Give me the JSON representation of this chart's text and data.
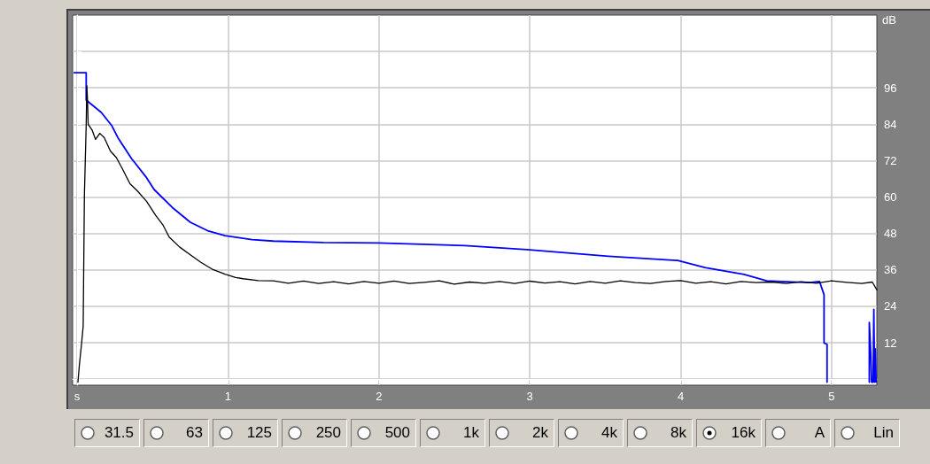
{
  "chart_data": {
    "type": "line",
    "ylabel": "dB",
    "xlim": [
      -0.03,
      5.3
    ],
    "xticks": [
      {
        "value": 0,
        "label": "s"
      },
      1,
      2,
      3,
      4,
      5
    ],
    "ylim": [
      -2,
      120
    ],
    "yticks": [
      {
        "value": 0,
        "label": null
      },
      12,
      24,
      36,
      48,
      60,
      72,
      84,
      96,
      {
        "value": 108,
        "label": null
      }
    ],
    "grid": true,
    "marker": "none",
    "line_style": "solid",
    "series": [
      {
        "color": "#0000ff",
        "x": [
          -0.02,
          0.06,
          0.06,
          0.16,
          0.23,
          0.27,
          0.36,
          0.46,
          0.51,
          0.63,
          0.75,
          0.87,
          0.98,
          1.16,
          1.3,
          1.63,
          2.0,
          2.57,
          2.98,
          3.52,
          3.98,
          4.16,
          4.42,
          4.57,
          4.7,
          4.85,
          4.92,
          4.95,
          4.95,
          4.97,
          4.97,
          5.1,
          5.25,
          5.25,
          5.26,
          5.265,
          5.275,
          5.28,
          5.285,
          5.29,
          5.295
        ],
        "values": [
          101,
          101,
          92,
          87.9,
          83.5,
          79.6,
          72.7,
          66.4,
          62.5,
          56.6,
          51.7,
          48.8,
          47.3,
          46,
          45.5,
          45,
          44.9,
          44,
          42.7,
          40.5,
          39.1,
          36.8,
          34.5,
          32.4,
          32.1,
          31.8,
          32.2,
          27.8,
          11.9,
          11.5,
          -1,
          null,
          -1,
          18.7,
          8,
          -1,
          -1,
          23,
          -1,
          10,
          -1
        ]
      },
      {
        "color": "#000000",
        "x": [
          0.005,
          0.015,
          0.029,
          0.04,
          0.048,
          0.06,
          0.064,
          0.068,
          0.073,
          0.1,
          0.122,
          0.15,
          0.18,
          0.22,
          0.26,
          0.3,
          0.35,
          0.4,
          0.46,
          0.52,
          0.57,
          0.61,
          0.68,
          0.75,
          0.82,
          0.9,
          0.98,
          1.05,
          1.1,
          1.2,
          1.3,
          1.4,
          1.5,
          1.6,
          1.7,
          1.8,
          1.9,
          2.0,
          2.1,
          2.2,
          2.3,
          2.4,
          2.5,
          2.6,
          2.7,
          2.8,
          2.9,
          3.0,
          3.1,
          3.2,
          3.3,
          3.4,
          3.5,
          3.6,
          3.7,
          3.8,
          3.9,
          4.0,
          4.1,
          4.2,
          4.3,
          4.4,
          4.5,
          4.6,
          4.7,
          4.8,
          4.9,
          5.0,
          5.1,
          5.2,
          5.27,
          5.3
        ],
        "values": [
          -1,
          4.8,
          11.6,
          17.5,
          60.5,
          84,
          96.7,
          92.8,
          84,
          82,
          79,
          81,
          79.6,
          75.2,
          73,
          69.3,
          64.4,
          62,
          58.6,
          54,
          50.7,
          46.8,
          43.5,
          41,
          38.5,
          36.1,
          34.6,
          33.5,
          33.1,
          32.5,
          32.4,
          31.6,
          32.3,
          31.5,
          32.1,
          31.4,
          32.2,
          31.6,
          32.3,
          31.5,
          31.9,
          32.4,
          31.3,
          32,
          31.6,
          32.2,
          31.5,
          32.3,
          31.7,
          32.1,
          31.4,
          32.2,
          31.6,
          32.4,
          31.8,
          31.5,
          32.2,
          32.5,
          31.6,
          32.1,
          31.4,
          32.2,
          31.8,
          32,
          31.5,
          32.1,
          31.6,
          32.4,
          31.9,
          31.5,
          32,
          29.4
        ]
      }
    ],
    "annotations": [
      "31.5",
      "63",
      "125",
      "250",
      "500",
      "1k",
      "2k",
      "4k",
      "8k",
      "16k",
      "A",
      "Lin"
    ]
  }
}
